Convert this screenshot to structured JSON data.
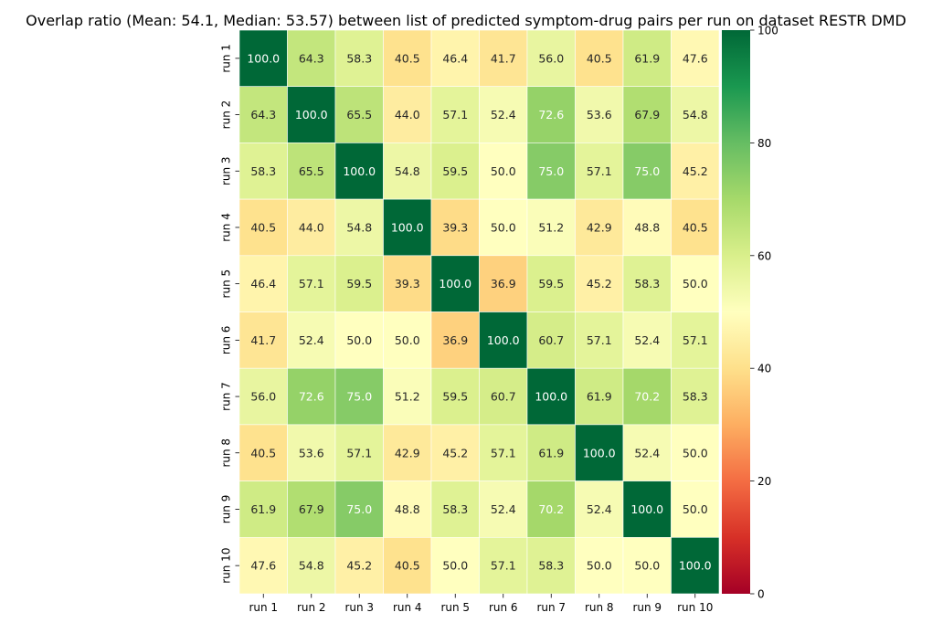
{
  "chart_data": {
    "type": "heatmap",
    "title": "Overlap ratio (Mean: 54.1, Median: 53.57) between list of predicted symptom-drug pairs per run on dataset RESTR DMD",
    "x_categories": [
      "run 1",
      "run 2",
      "run 3",
      "run 4",
      "run 5",
      "run 6",
      "run 7",
      "run 8",
      "run 9",
      "run 10"
    ],
    "y_categories": [
      "run 1",
      "run 2",
      "run 3",
      "run 4",
      "run 5",
      "run 6",
      "run 7",
      "run 8",
      "run 9",
      "run 10"
    ],
    "values": [
      [
        100.0,
        64.3,
        58.3,
        40.5,
        46.4,
        41.7,
        56.0,
        40.5,
        61.9,
        47.6
      ],
      [
        64.3,
        100.0,
        65.5,
        44.0,
        57.1,
        52.4,
        72.6,
        53.6,
        67.9,
        54.8
      ],
      [
        58.3,
        65.5,
        100.0,
        54.8,
        59.5,
        50.0,
        75.0,
        57.1,
        75.0,
        45.2
      ],
      [
        40.5,
        44.0,
        54.8,
        100.0,
        39.3,
        50.0,
        51.2,
        42.9,
        48.8,
        40.5
      ],
      [
        46.4,
        57.1,
        59.5,
        39.3,
        100.0,
        36.9,
        59.5,
        45.2,
        58.3,
        50.0
      ],
      [
        41.7,
        52.4,
        50.0,
        50.0,
        36.9,
        100.0,
        60.7,
        57.1,
        52.4,
        57.1
      ],
      [
        56.0,
        72.6,
        75.0,
        51.2,
        59.5,
        60.7,
        100.0,
        61.9,
        70.2,
        58.3
      ],
      [
        40.5,
        53.6,
        57.1,
        42.9,
        45.2,
        57.1,
        61.9,
        100.0,
        52.4,
        50.0
      ],
      [
        61.9,
        67.9,
        75.0,
        48.8,
        58.3,
        52.4,
        70.2,
        52.4,
        100.0,
        50.0
      ],
      [
        47.6,
        54.8,
        45.2,
        40.5,
        50.0,
        57.1,
        58.3,
        50.0,
        50.0,
        100.0
      ]
    ],
    "value_format": "0.0",
    "colormap": "RdYlGn",
    "vmin": 0,
    "vmax": 100,
    "colorbar_ticks": [
      0,
      20,
      40,
      60,
      80,
      100
    ],
    "grid": false,
    "cell_borders": true,
    "colorbar_position": "right"
  }
}
